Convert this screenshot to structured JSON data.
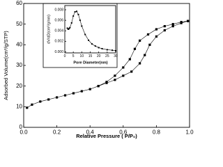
{
  "chart_data": [
    {
      "type": "line",
      "xlabel": "Relative Pressure ( P/P₀)",
      "ylabel": "Adsorbed Volume(cm³/g/STP)",
      "xlim": [
        0,
        1
      ],
      "ylim": [
        0,
        60
      ],
      "xticks": [
        {
          "value": 0,
          "label": "0.0"
        },
        {
          "value": 0.2,
          "label": "0.2"
        },
        {
          "value": 0.4,
          "label": "0.4"
        },
        {
          "value": 0.6,
          "label": "0.6"
        },
        {
          "value": 0.8,
          "label": "0.8"
        },
        {
          "value": 1,
          "label": "1.0"
        }
      ],
      "yticks": [
        0,
        10,
        20,
        30,
        40,
        50,
        60
      ],
      "series": [
        {
          "color": "#000000",
          "x": [
            0.02,
            0.05,
            0.1,
            0.15,
            0.2,
            0.25,
            0.3,
            0.35,
            0.4,
            0.45,
            0.5,
            0.55,
            0.6,
            0.65,
            0.7,
            0.73,
            0.76,
            0.8,
            0.85,
            0.9,
            0.95,
            0.99
          ],
          "values": [
            9.5,
            11,
            12.5,
            13.5,
            14.5,
            15.5,
            16.5,
            17.5,
            18.5,
            20,
            21.5,
            23,
            25,
            27,
            31,
            35,
            40,
            44,
            47,
            49,
            50.5,
            51.5
          ]
        },
        {
          "color": "#000000",
          "x": [
            0.99,
            0.95,
            0.9,
            0.85,
            0.8,
            0.75,
            0.7,
            0.67,
            0.64,
            0.6,
            0.55,
            0.5,
            0.45
          ],
          "values": [
            51.5,
            51,
            50,
            49,
            47.5,
            45,
            42,
            38,
            33,
            29,
            25,
            22,
            20
          ]
        }
      ]
    },
    {
      "type": "line",
      "xlabel": "Pore Diameter(nm)",
      "ylabel": "dV/dD(cm³/g/nm)",
      "xlim": [
        0,
        30
      ],
      "ylim": [
        -0.0002,
        0.0088
      ],
      "xticks": [
        0,
        5,
        10,
        15,
        20,
        25,
        30
      ],
      "yticks": [
        {
          "value": 0,
          "label": "0.000"
        },
        {
          "value": 0.002,
          "label": "0.002"
        },
        {
          "value": 0.004,
          "label": "0.004"
        },
        {
          "value": 0.006,
          "label": "0.006"
        },
        {
          "value": 0.008,
          "label": "0.008"
        }
      ],
      "series": [
        {
          "color": "#000000",
          "x": [
            1.5,
            2,
            2.5,
            3,
            4,
            5,
            6,
            7,
            8,
            9,
            10,
            12,
            14,
            16,
            18,
            20,
            22,
            25,
            28,
            30
          ],
          "values": [
            0.0045,
            0.0043,
            0.0044,
            0.0046,
            0.0055,
            0.0068,
            0.0076,
            0.0077,
            0.0071,
            0.006,
            0.0049,
            0.0033,
            0.0022,
            0.0015,
            0.0011,
            0.0008,
            0.0006,
            0.0004,
            0.0003,
            0.0002
          ]
        }
      ]
    }
  ]
}
